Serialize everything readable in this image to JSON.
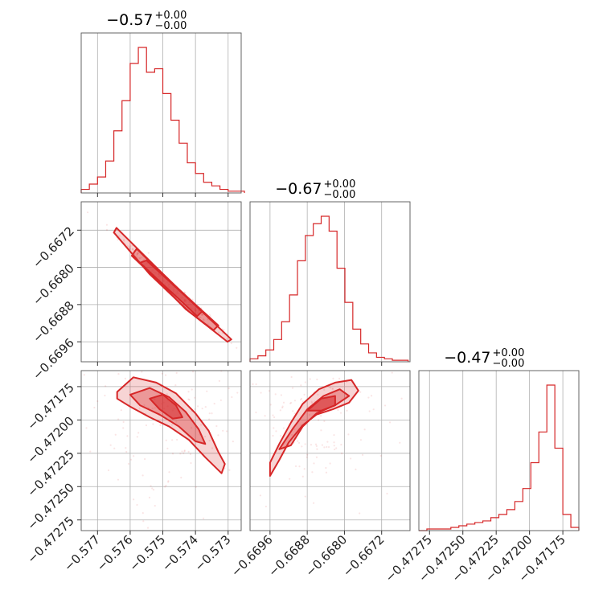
{
  "chart_data": {
    "type": "corner",
    "color": "#d62728",
    "parameters": [
      {
        "title": "−0.57",
        "err_plus": "+0.00",
        "err_minus": "−0.00",
        "range": [
          -0.5775,
          -0.5726
        ],
        "ticks": [
          -0.577,
          -0.576,
          -0.575,
          -0.574,
          -0.573
        ],
        "tick_labels": [
          "−0.577",
          "−0.576",
          "−0.575",
          "−0.574",
          "−0.573"
        ]
      },
      {
        "title": "−0.67",
        "err_plus": "+0.00",
        "err_minus": "−0.00",
        "range": [
          -0.67003,
          -0.66659
        ],
        "ticks": [
          -0.6696,
          -0.6688,
          -0.668,
          -0.6672
        ],
        "tick_labels": [
          "−0.6696",
          "−0.6688",
          "−0.6680",
          "−0.6672"
        ]
      },
      {
        "title": "−0.47",
        "err_plus": "+0.00",
        "err_minus": "−0.00",
        "range": [
          -0.47283,
          -0.47163
        ],
        "ticks": [
          -0.47275,
          -0.4725,
          -0.47225,
          -0.472,
          -0.47175
        ],
        "tick_labels": [
          "−0.47275",
          "−0.47250",
          "−0.47225",
          "−0.47200",
          "−0.47175"
        ]
      }
    ],
    "histograms": [
      {
        "param": 0,
        "edges": [
          -0.5775,
          -0.57725,
          -0.577,
          -0.57675,
          -0.5765,
          -0.57625,
          -0.576,
          -0.57575,
          -0.5755,
          -0.57525,
          -0.575,
          -0.57475,
          -0.5745,
          -0.57425,
          -0.574,
          -0.57375,
          -0.5735,
          -0.57325,
          -0.573,
          -0.57275,
          -0.5725
        ],
        "counts": [
          2,
          5,
          9,
          18,
          35,
          52,
          73,
          82,
          68,
          70,
          56,
          41,
          28,
          17,
          11,
          6,
          4,
          2,
          1,
          1
        ]
      },
      {
        "param": 1,
        "edges": [
          -0.67003,
          -0.66986,
          -0.66969,
          -0.66952,
          -0.66935,
          -0.66918,
          -0.66901,
          -0.66884,
          -0.66867,
          -0.6685,
          -0.66833,
          -0.66816,
          -0.66799,
          -0.66782,
          -0.66765,
          -0.66748,
          -0.66731,
          -0.66714,
          -0.66697,
          -0.6668,
          -0.66663
        ],
        "counts": [
          2,
          4,
          8,
          15,
          27,
          45,
          68,
          85,
          93,
          98,
          88,
          63,
          40,
          22,
          12,
          6,
          3,
          2,
          1,
          1
        ]
      },
      {
        "param": 2,
        "edges": [
          -0.47283,
          -0.47277,
          -0.47271,
          -0.47265,
          -0.47259,
          -0.47253,
          -0.47247,
          -0.47241,
          -0.47235,
          -0.47229,
          -0.47223,
          -0.47217,
          -0.47211,
          -0.47205,
          -0.47199,
          -0.47193,
          -0.47187,
          -0.47181,
          -0.47175,
          -0.47169,
          -0.47163
        ],
        "counts": [
          0,
          1,
          1,
          1,
          2,
          3,
          4,
          5,
          6,
          8,
          10,
          13,
          18,
          26,
          42,
          61,
          90,
          51,
          10,
          2
        ]
      }
    ],
    "contours_2d": [
      {
        "px": 0,
        "py": 1,
        "levels": [
          [
            [
              -0.57642,
              -0.66715
            ],
            [
              -0.5752,
              -0.668
            ],
            [
              -0.5741,
              -0.66875
            ],
            [
              -0.5729,
              -0.66955
            ],
            [
              -0.57302,
              -0.6696
            ],
            [
              -0.5742,
              -0.66895
            ],
            [
              -0.5754,
              -0.66815
            ],
            [
              -0.5765,
              -0.66725
            ]
          ],
          [
            [
              -0.5758,
              -0.6676
            ],
            [
              -0.575,
              -0.66815
            ],
            [
              -0.574,
              -0.6688
            ],
            [
              -0.5733,
              -0.66925
            ],
            [
              -0.57345,
              -0.66935
            ],
            [
              -0.5743,
              -0.6689
            ],
            [
              -0.5752,
              -0.66825
            ],
            [
              -0.57595,
              -0.66775
            ]
          ],
          [
            [
              -0.5755,
              -0.66785
            ],
            [
              -0.5748,
              -0.6683
            ],
            [
              -0.5741,
              -0.66875
            ],
            [
              -0.5738,
              -0.66895
            ],
            [
              -0.57395,
              -0.66905
            ],
            [
              -0.5744,
              -0.66875
            ],
            [
              -0.5751,
              -0.6683
            ],
            [
              -0.5757,
              -0.6679
            ]
          ]
        ]
      },
      {
        "px": 0,
        "py": 2,
        "levels": [
          [
            [
              -0.5764,
              -0.47179
            ],
            [
              -0.5759,
              -0.47168
            ],
            [
              -0.5752,
              -0.47172
            ],
            [
              -0.5746,
              -0.4718
            ],
            [
              -0.574,
              -0.47195
            ],
            [
              -0.5736,
              -0.47208
            ],
            [
              -0.5733,
              -0.47224
            ],
            [
              -0.5731,
              -0.47233
            ],
            [
              -0.5732,
              -0.4724
            ],
            [
              -0.5737,
              -0.47228
            ],
            [
              -0.5742,
              -0.47215
            ],
            [
              -0.5748,
              -0.47205
            ],
            [
              -0.5754,
              -0.47198
            ],
            [
              -0.576,
              -0.4719
            ],
            [
              -0.5764,
              -0.47184
            ]
          ],
          [
            [
              -0.576,
              -0.47181
            ],
            [
              -0.5754,
              -0.47176
            ],
            [
              -0.5748,
              -0.47183
            ],
            [
              -0.5743,
              -0.47194
            ],
            [
              -0.5739,
              -0.47207
            ],
            [
              -0.5737,
              -0.47218
            ],
            [
              -0.574,
              -0.47216
            ],
            [
              -0.5745,
              -0.47205
            ],
            [
              -0.5751,
              -0.47196
            ],
            [
              -0.5757,
              -0.47189
            ]
          ],
          [
            [
              -0.5754,
              -0.47184
            ],
            [
              -0.575,
              -0.47181
            ],
            [
              -0.5746,
              -0.47189
            ],
            [
              -0.5744,
              -0.47198
            ],
            [
              -0.5747,
              -0.47199
            ],
            [
              -0.5751,
              -0.47192
            ]
          ]
        ]
      },
      {
        "px": 1,
        "py": 2,
        "levels": [
          [
            [
              -0.6696,
              -0.47232
            ],
            [
              -0.6694,
              -0.47218
            ],
            [
              -0.66915,
              -0.47202
            ],
            [
              -0.6689,
              -0.47188
            ],
            [
              -0.66855,
              -0.47177
            ],
            [
              -0.6682,
              -0.47172
            ],
            [
              -0.66785,
              -0.4717
            ],
            [
              -0.6677,
              -0.47178
            ],
            [
              -0.6679,
              -0.47187
            ],
            [
              -0.66825,
              -0.47192
            ],
            [
              -0.6686,
              -0.47196
            ],
            [
              -0.6689,
              -0.47204
            ],
            [
              -0.6692,
              -0.47217
            ],
            [
              -0.6694,
              -0.4723
            ],
            [
              -0.6696,
              -0.47242
            ]
          ],
          [
            [
              -0.6694,
              -0.47222
            ],
            [
              -0.6691,
              -0.47206
            ],
            [
              -0.6688,
              -0.47192
            ],
            [
              -0.66845,
              -0.47182
            ],
            [
              -0.6681,
              -0.47177
            ],
            [
              -0.6679,
              -0.47182
            ],
            [
              -0.6682,
              -0.47189
            ],
            [
              -0.6686,
              -0.47195
            ],
            [
              -0.6689,
              -0.47205
            ],
            [
              -0.66915,
              -0.47219
            ]
          ],
          [
            [
              -0.6688,
              -0.47193
            ],
            [
              -0.6685,
              -0.47184
            ],
            [
              -0.6682,
              -0.47182
            ],
            [
              -0.6682,
              -0.47189
            ],
            [
              -0.6685,
              -0.47193
            ]
          ]
        ]
      }
    ]
  }
}
